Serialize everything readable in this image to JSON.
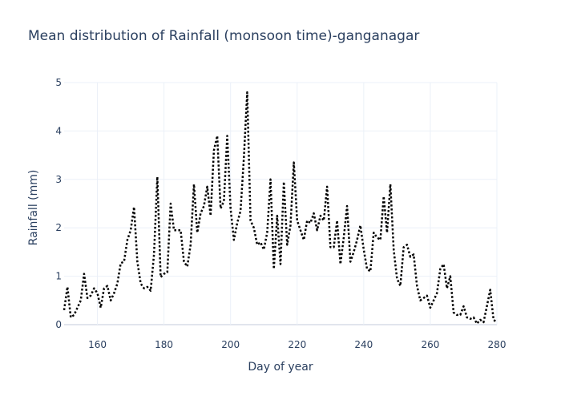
{
  "chart_data": {
    "type": "line",
    "title": "Mean distribution of Rainfall (monsoon time)-ganganagar",
    "xlabel": "Day of year",
    "ylabel": "Rainfall (mm)",
    "xlim": [
      150,
      280
    ],
    "ylim": [
      0,
      5
    ],
    "xticks": [
      160,
      180,
      200,
      220,
      240,
      260,
      280
    ],
    "yticks": [
      0,
      1,
      2,
      3,
      4,
      5
    ],
    "grid": true,
    "line_style": "dotted",
    "line_color": "#000000",
    "series": [
      {
        "x": [
          150,
          151,
          152,
          153,
          154,
          155,
          156,
          157,
          158,
          159,
          160,
          161,
          162,
          163,
          164,
          165,
          166,
          167,
          168,
          169,
          170,
          171,
          172,
          173,
          174,
          175,
          176,
          177,
          178,
          179,
          180,
          181,
          182,
          183,
          184,
          185,
          186,
          187,
          188,
          189,
          190,
          191,
          192,
          193,
          194,
          195,
          196,
          197,
          198,
          199,
          200,
          201,
          202,
          203,
          204,
          205,
          206,
          207,
          208,
          209,
          210,
          211,
          212,
          213,
          214,
          215,
          216,
          217,
          218,
          219,
          220,
          221,
          222,
          223,
          224,
          225,
          226,
          227,
          228,
          229,
          230,
          231,
          232,
          233,
          234,
          235,
          236,
          237,
          238,
          239,
          240,
          241,
          242,
          243,
          244,
          245,
          246,
          247,
          248,
          249,
          250,
          251,
          252,
          253,
          254,
          255,
          256,
          257,
          258,
          259,
          260,
          261,
          262,
          263,
          264,
          265,
          266,
          267,
          268,
          269,
          270,
          271,
          272,
          273,
          274,
          275,
          276,
          277,
          278,
          279,
          280
        ],
        "y": [
          0.3,
          0.78,
          0.15,
          0.2,
          0.35,
          0.5,
          1.05,
          0.55,
          0.6,
          0.75,
          0.65,
          0.35,
          0.75,
          0.8,
          0.5,
          0.65,
          0.85,
          1.27,
          1.3,
          1.75,
          1.95,
          2.43,
          1.3,
          0.85,
          0.75,
          0.78,
          0.7,
          1.45,
          3.05,
          0.98,
          1.05,
          1.08,
          2.5,
          1.95,
          1.95,
          1.95,
          1.3,
          1.2,
          1.65,
          2.9,
          1.9,
          2.3,
          2.45,
          2.85,
          2.25,
          3.6,
          3.9,
          2.4,
          2.55,
          3.9,
          2.4,
          1.75,
          2.1,
          2.35,
          3.45,
          4.8,
          2.15,
          2.0,
          1.65,
          1.7,
          1.55,
          1.9,
          3.0,
          1.15,
          2.25,
          1.25,
          2.95,
          1.65,
          2.05,
          3.35,
          2.15,
          1.95,
          1.75,
          2.15,
          2.1,
          2.3,
          1.95,
          2.25,
          2.15,
          2.85,
          1.6,
          1.6,
          2.15,
          1.25,
          1.8,
          2.45,
          1.3,
          1.5,
          1.75,
          2.05,
          1.55,
          1.15,
          1.1,
          1.9,
          1.8,
          1.75,
          2.65,
          1.9,
          2.9,
          1.55,
          0.95,
          0.8,
          1.6,
          1.65,
          1.4,
          1.45,
          0.8,
          0.5,
          0.55,
          0.6,
          0.35,
          0.5,
          0.65,
          1.15,
          1.25,
          0.75,
          1.0,
          0.25,
          0.2,
          0.2,
          0.38,
          0.15,
          0.12,
          0.15,
          0.02,
          0.1,
          0.05,
          0.38,
          0.72,
          0.1,
          0.05
        ]
      }
    ]
  }
}
